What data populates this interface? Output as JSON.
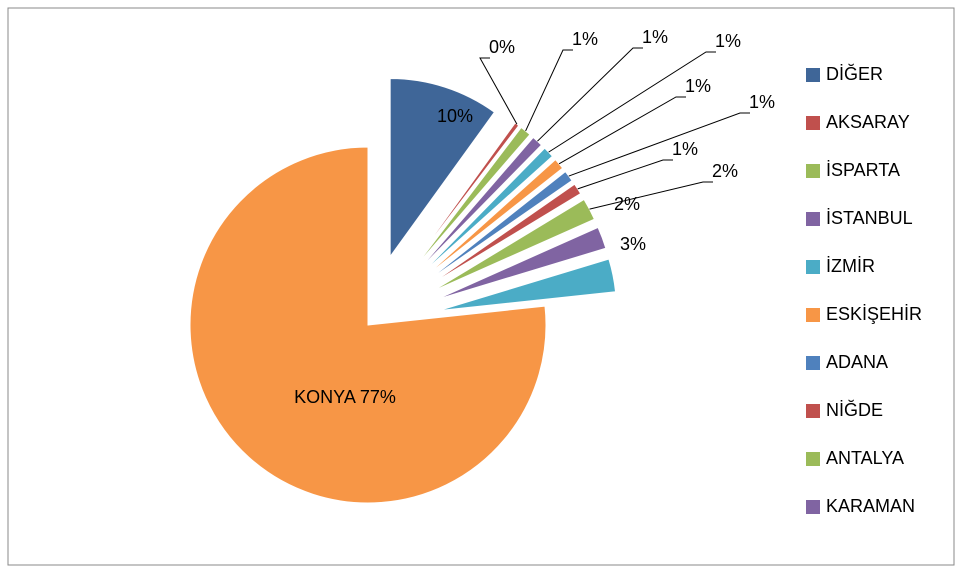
{
  "chart_data": {
    "type": "pie",
    "categories": [
      "DİĞER",
      "AKSARAY",
      "İSPARTA",
      "İSTANBUL",
      "İZMİR",
      "ESKİŞEHİR",
      "ADANA",
      "NİĞDE",
      "ANTALYA",
      "KARAMAN",
      null,
      null
    ],
    "values": [
      10,
      0.4,
      1,
      1,
      1,
      1,
      1,
      1,
      2,
      2,
      3,
      77
    ],
    "value_labels": [
      "10%",
      "0%",
      "1%",
      "1%",
      "1%",
      "1%",
      "1%",
      "1%",
      "2%",
      "2%",
      "3%",
      "KONYA  77%"
    ],
    "colors": [
      "#3f6698",
      "#c0504d",
      "#9bbb59",
      "#8064a2",
      "#4bacc6",
      "#f79646",
      "#4f81bd",
      "#c0504d",
      "#9bbb59",
      "#8064a2",
      "#4bacc6",
      "#f79646"
    ],
    "legend": "right"
  }
}
